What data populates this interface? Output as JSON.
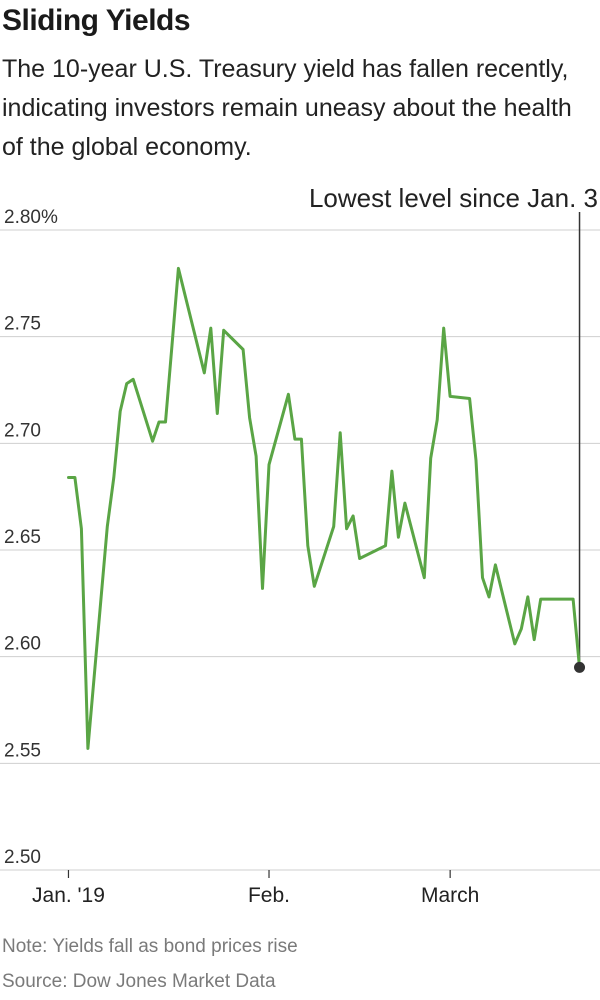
{
  "title": "Sliding Yields",
  "subtitle": "The 10-year U.S. Treasury yield has fallen recently, indicating investors remain uneasy about the health of the global economy.",
  "note": "Note: Yields fall as bond prices rise",
  "source": "Source: Dow Jones Market Data",
  "colors": {
    "line": "#5aa545",
    "grid": "#cfcfcf",
    "marker": "#333333",
    "axis": "#333333"
  },
  "chart_data": {
    "type": "line",
    "title": "Sliding Yields",
    "ylim": [
      2.5,
      2.8
    ],
    "yticks": [
      2.5,
      2.55,
      2.6,
      2.65,
      2.7,
      2.75,
      2.8
    ],
    "ytick_labels": [
      "2.50",
      "2.55",
      "2.60",
      "2.65",
      "2.70",
      "2.75",
      "2.80%"
    ],
    "xticks": [
      {
        "label": "Jan. '19",
        "date": "2019-01-01"
      },
      {
        "label": "Feb.",
        "date": "2019-02-01"
      },
      {
        "label": "March",
        "date": "2019-03-01"
      }
    ],
    "xlim": [
      "2018-12-31",
      "2019-03-22"
    ],
    "grid": true,
    "annotation": {
      "text": "Lowest level since Jan. 3",
      "date": "2019-03-21",
      "value": 2.595
    },
    "series": [
      {
        "x": [
          "2019-01-01",
          "2019-01-02",
          "2019-01-03",
          "2019-01-04",
          "2019-01-07",
          "2019-01-08",
          "2019-01-09",
          "2019-01-10",
          "2019-01-11",
          "2019-01-14",
          "2019-01-15",
          "2019-01-16",
          "2019-01-17",
          "2019-01-18",
          "2019-01-22",
          "2019-01-23",
          "2019-01-24",
          "2019-01-25",
          "2019-01-28",
          "2019-01-29",
          "2019-01-30",
          "2019-01-31",
          "2019-02-01",
          "2019-02-04",
          "2019-02-05",
          "2019-02-06",
          "2019-02-07",
          "2019-02-08",
          "2019-02-11",
          "2019-02-12",
          "2019-02-13",
          "2019-02-14",
          "2019-02-15",
          "2019-02-19",
          "2019-02-20",
          "2019-02-21",
          "2019-02-22",
          "2019-02-25",
          "2019-02-26",
          "2019-02-27",
          "2019-02-28",
          "2019-03-01",
          "2019-03-04",
          "2019-03-05",
          "2019-03-06",
          "2019-03-07",
          "2019-03-08",
          "2019-03-11",
          "2019-03-12",
          "2019-03-13",
          "2019-03-14",
          "2019-03-15",
          "2019-03-18",
          "2019-03-19",
          "2019-03-20",
          "2019-03-21"
        ],
        "values": [
          2.684,
          2.684,
          2.66,
          2.557,
          2.661,
          2.684,
          2.715,
          2.728,
          2.73,
          2.701,
          2.71,
          2.71,
          2.746,
          2.782,
          2.733,
          2.754,
          2.714,
          2.753,
          2.744,
          2.712,
          2.694,
          2.632,
          2.69,
          2.723,
          2.702,
          2.702,
          2.652,
          2.633,
          2.661,
          2.705,
          2.66,
          2.666,
          2.646,
          2.652,
          2.687,
          2.656,
          2.672,
          2.637,
          2.693,
          2.711,
          2.754,
          2.722,
          2.721,
          2.692,
          2.637,
          2.628,
          2.643,
          2.606,
          2.613,
          2.628,
          2.608,
          2.627,
          2.627,
          2.627,
          2.627,
          2.595
        ]
      }
    ]
  }
}
